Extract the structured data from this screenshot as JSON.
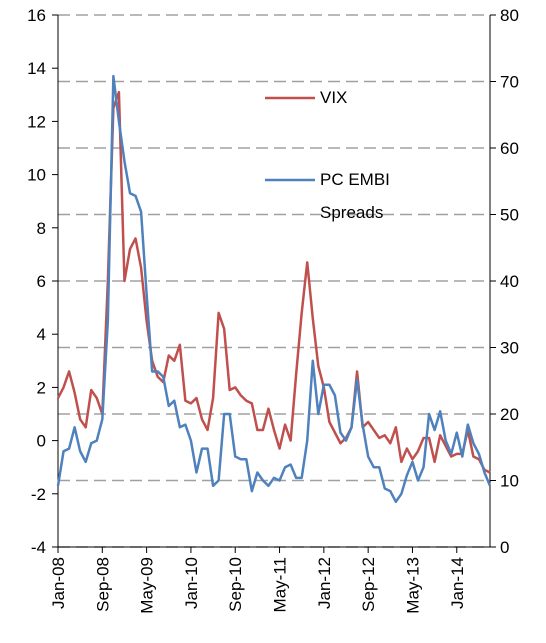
{
  "chart_data": {
    "type": "line",
    "categories": [
      "Jan-08",
      null,
      null,
      null,
      null,
      null,
      null,
      null,
      "Sep-08",
      null,
      null,
      null,
      null,
      null,
      null,
      null,
      "May-09",
      null,
      null,
      null,
      null,
      null,
      null,
      null,
      "Jan-10",
      null,
      null,
      null,
      null,
      null,
      null,
      null,
      "Sep-10",
      null,
      null,
      null,
      null,
      null,
      null,
      null,
      "May-11",
      null,
      null,
      null,
      null,
      null,
      null,
      null,
      "Jan-12",
      null,
      null,
      null,
      null,
      null,
      null,
      null,
      "Sep-12",
      null,
      null,
      null,
      null,
      null,
      null,
      null,
      "May-13",
      null,
      null,
      null,
      null,
      null,
      null,
      null,
      "Jan-14",
      null,
      null,
      null,
      null,
      null,
      null
    ],
    "series": [
      {
        "name": "VIX",
        "color": "#c0504d",
        "axis": "y2",
        "values": [
          22.4,
          24,
          26.4,
          23.2,
          19.2,
          18,
          23.6,
          22.4,
          20,
          40,
          66,
          68.4,
          40,
          44.8,
          46.4,
          42,
          34,
          28,
          25.6,
          24.8,
          28.8,
          28,
          30.4,
          22,
          21.6,
          22.4,
          19.2,
          17.6,
          22.4,
          35.2,
          32.8,
          23.6,
          24,
          22.8,
          22,
          21.6,
          17.6,
          17.6,
          20.8,
          17.6,
          14.8,
          18.4,
          16,
          26,
          35.2,
          42.8,
          34.4,
          27.2,
          24,
          18.8,
          17.2,
          15.6,
          16.4,
          18,
          26.4,
          18,
          18.8,
          17.6,
          16.4,
          16.8,
          15.6,
          18,
          12.8,
          14.8,
          13.2,
          14.4,
          16.4,
          16.4,
          12.8,
          16.8,
          15.2,
          13.6,
          14,
          14,
          17.6,
          13.6,
          13.2,
          11.6,
          11.2
        ]
      },
      {
        "name": "PC EMBI Spreads",
        "color": "#4f81bd",
        "values": [
          -1.7,
          -0.4,
          -0.3,
          0.5,
          -0.4,
          -0.8,
          -0.1,
          0.0,
          0.8,
          4.5,
          13.7,
          12.0,
          10.5,
          9.3,
          9.2,
          8.6,
          5.5,
          2.6,
          2.6,
          2.4,
          1.3,
          1.5,
          0.5,
          0.6,
          0.0,
          -1.2,
          -0.3,
          -0.3,
          -1.7,
          -1.5,
          1.0,
          1.0,
          -0.6,
          -0.7,
          -0.7,
          -1.9,
          -1.2,
          -1.5,
          -1.7,
          -1.4,
          -1.5,
          -1.0,
          -0.9,
          -1.4,
          -1.4,
          0.0,
          3.0,
          1.0,
          2.1,
          2.1,
          1.7,
          0.3,
          0.0,
          0.5,
          2.3,
          0.6,
          -0.6,
          -1.0,
          -1.0,
          -1.8,
          -1.9,
          -2.3,
          -2.0,
          -1.3,
          -0.8,
          -1.5,
          -1.0,
          1.0,
          0.4,
          1.1,
          0.0,
          -0.5,
          0.3,
          -0.6,
          0.6,
          -0.1,
          -0.5,
          -1.2,
          -1.7
        ]
      }
    ],
    "ylim": [
      -4,
      16
    ],
    "yticks": [
      -4,
      -2,
      0,
      2,
      4,
      6,
      8,
      10,
      12,
      14,
      16
    ],
    "y2lim": [
      0,
      80
    ],
    "y2ticks": [
      0,
      10,
      20,
      30,
      40,
      50,
      60,
      70,
      80
    ],
    "grid": true
  }
}
